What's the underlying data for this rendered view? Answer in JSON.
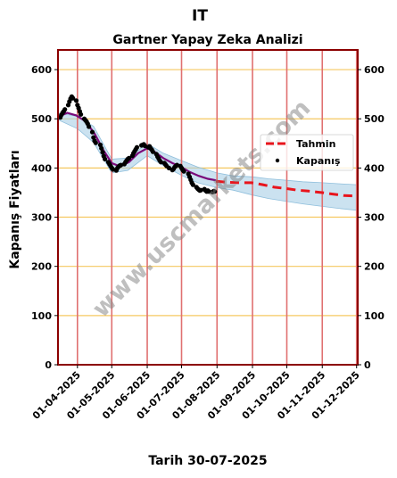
{
  "chart_data": {
    "type": "line",
    "suptitle": "IT",
    "title": "Gartner Yapay Zeka Analizi",
    "ylabel": "Kapanış Fiyatları",
    "xlabel": "Tarih 30-07-2025",
    "watermark": "www.uscmarkets.com",
    "ylim": [
      0,
      640
    ],
    "xlim": [
      "2025-03-15",
      "2025-12-02"
    ],
    "yticks": [
      0,
      100,
      200,
      300,
      400,
      500,
      600
    ],
    "xticks": [
      {
        "date": "2025-04-01",
        "label": "01-04-2025"
      },
      {
        "date": "2025-05-01",
        "label": "01-05-2025"
      },
      {
        "date": "2025-06-01",
        "label": "01-06-2025"
      },
      {
        "date": "2025-07-01",
        "label": "01-07-2025"
      },
      {
        "date": "2025-08-01",
        "label": "01-08-2025"
      },
      {
        "date": "2025-09-01",
        "label": "01-09-2025"
      },
      {
        "date": "2025-10-01",
        "label": "01-10-2025"
      },
      {
        "date": "2025-11-01",
        "label": "01-11-2025"
      },
      {
        "date": "2025-12-01",
        "label": "01-12-2025"
      }
    ],
    "vlines": [
      "2025-04-01",
      "2025-05-01",
      "2025-06-01",
      "2025-07-01",
      "2025-08-01",
      "2025-09-01",
      "2025-10-01",
      "2025-11-01",
      "2025-12-01"
    ],
    "grid": true,
    "legend_position": "right",
    "legend": [
      {
        "label": "Tahmin",
        "style": "dashed-line",
        "color": "#e8141c"
      },
      {
        "label": "Kapanış",
        "style": "dot",
        "color": "#000000"
      }
    ],
    "colors": {
      "axes_border": "#8b0000",
      "vline": "#e07070",
      "hgrid": "#f5c860",
      "band": "#a8cfe6",
      "band_edge": "#8fbfdc",
      "fit_past": "#7a0a7a",
      "forecast": "#e8141c",
      "close": "#000000"
    },
    "series": [
      {
        "name": "Kapanış",
        "kind": "scatter",
        "points": [
          [
            "2025-03-17",
            503
          ],
          [
            "2025-03-18",
            508
          ],
          [
            "2025-03-19",
            512
          ],
          [
            "2025-03-20",
            515
          ],
          [
            "2025-03-21",
            519
          ],
          [
            "2025-03-24",
            528
          ],
          [
            "2025-03-25",
            535
          ],
          [
            "2025-03-26",
            541
          ],
          [
            "2025-03-27",
            545
          ],
          [
            "2025-03-28",
            542
          ],
          [
            "2025-03-31",
            537
          ],
          [
            "2025-04-01",
            528
          ],
          [
            "2025-04-02",
            522
          ],
          [
            "2025-04-03",
            515
          ],
          [
            "2025-04-04",
            509
          ],
          [
            "2025-04-07",
            500
          ],
          [
            "2025-04-08",
            497
          ],
          [
            "2025-04-09",
            494
          ],
          [
            "2025-04-10",
            490
          ],
          [
            "2025-04-11",
            484
          ],
          [
            "2025-04-14",
            473
          ],
          [
            "2025-04-15",
            462
          ],
          [
            "2025-04-16",
            455
          ],
          [
            "2025-04-17",
            451
          ],
          [
            "2025-04-21",
            447
          ],
          [
            "2025-04-22",
            440
          ],
          [
            "2025-04-23",
            432
          ],
          [
            "2025-04-24",
            424
          ],
          [
            "2025-04-25",
            418
          ],
          [
            "2025-04-28",
            412
          ],
          [
            "2025-04-29",
            408
          ],
          [
            "2025-04-30",
            404
          ],
          [
            "2025-05-01",
            400
          ],
          [
            "2025-05-02",
            397
          ],
          [
            "2025-05-05",
            395
          ],
          [
            "2025-05-06",
            400
          ],
          [
            "2025-05-07",
            403
          ],
          [
            "2025-05-08",
            405
          ],
          [
            "2025-05-09",
            406
          ],
          [
            "2025-05-12",
            408
          ],
          [
            "2025-05-13",
            412
          ],
          [
            "2025-05-14",
            415
          ],
          [
            "2025-05-15",
            418
          ],
          [
            "2025-05-16",
            420
          ],
          [
            "2025-05-19",
            425
          ],
          [
            "2025-05-20",
            430
          ],
          [
            "2025-05-21",
            434
          ],
          [
            "2025-05-22",
            438
          ],
          [
            "2025-05-23",
            442
          ],
          [
            "2025-05-27",
            446
          ],
          [
            "2025-05-28",
            447
          ],
          [
            "2025-05-29",
            448
          ],
          [
            "2025-05-30",
            445
          ],
          [
            "2025-06-02",
            442
          ],
          [
            "2025-06-03",
            444
          ],
          [
            "2025-06-04",
            440
          ],
          [
            "2025-06-05",
            437
          ],
          [
            "2025-06-06",
            433
          ],
          [
            "2025-06-09",
            428
          ],
          [
            "2025-06-10",
            423
          ],
          [
            "2025-06-11",
            419
          ],
          [
            "2025-06-12",
            415
          ],
          [
            "2025-06-13",
            412
          ],
          [
            "2025-06-16",
            410
          ],
          [
            "2025-06-17",
            407
          ],
          [
            "2025-06-18",
            404
          ],
          [
            "2025-06-20",
            400
          ],
          [
            "2025-06-23",
            396
          ],
          [
            "2025-06-24",
            398
          ],
          [
            "2025-06-25",
            402
          ],
          [
            "2025-06-26",
            404
          ],
          [
            "2025-06-27",
            406
          ],
          [
            "2025-06-30",
            404
          ],
          [
            "2025-07-01",
            400
          ],
          [
            "2025-07-02",
            396
          ],
          [
            "2025-07-03",
            393
          ],
          [
            "2025-07-07",
            388
          ],
          [
            "2025-07-08",
            382
          ],
          [
            "2025-07-09",
            376
          ],
          [
            "2025-07-10",
            370
          ],
          [
            "2025-07-11",
            366
          ],
          [
            "2025-07-14",
            361
          ],
          [
            "2025-07-15",
            358
          ],
          [
            "2025-07-16",
            356
          ],
          [
            "2025-07-17",
            354
          ],
          [
            "2025-07-18",
            355
          ],
          [
            "2025-07-21",
            357
          ],
          [
            "2025-07-22",
            354
          ],
          [
            "2025-07-23",
            352
          ],
          [
            "2025-07-24",
            354
          ],
          [
            "2025-07-25",
            352
          ],
          [
            "2025-07-28",
            351
          ],
          [
            "2025-07-29",
            353
          ],
          [
            "2025-07-30",
            352
          ]
        ]
      },
      {
        "name": "Tahmin",
        "kind": "dashed-line",
        "points": [
          [
            "2025-07-31",
            373
          ],
          [
            "2025-08-10",
            371
          ],
          [
            "2025-08-20",
            370
          ],
          [
            "2025-08-31",
            370
          ],
          [
            "2025-09-10",
            366
          ],
          [
            "2025-09-20",
            361
          ],
          [
            "2025-10-01",
            358
          ],
          [
            "2025-10-10",
            355
          ],
          [
            "2025-10-20",
            353
          ],
          [
            "2025-11-01",
            350
          ],
          [
            "2025-11-10",
            347
          ],
          [
            "2025-11-20",
            344
          ],
          [
            "2025-12-01",
            343
          ]
        ]
      },
      {
        "name": "",
        "kind": "past-fit",
        "points": [
          [
            "2025-03-16",
            505
          ],
          [
            "2025-03-23",
            512
          ],
          [
            "2025-03-31",
            507
          ],
          [
            "2025-04-08",
            495
          ],
          [
            "2025-04-16",
            470
          ],
          [
            "2025-04-24",
            435
          ],
          [
            "2025-05-01",
            410
          ],
          [
            "2025-05-08",
            403
          ],
          [
            "2025-05-16",
            412
          ],
          [
            "2025-05-24",
            430
          ],
          [
            "2025-06-01",
            440
          ],
          [
            "2025-06-08",
            432
          ],
          [
            "2025-06-15",
            420
          ],
          [
            "2025-06-23",
            410
          ],
          [
            "2025-07-01",
            402
          ],
          [
            "2025-07-08",
            392
          ],
          [
            "2025-07-16",
            384
          ],
          [
            "2025-07-24",
            378
          ],
          [
            "2025-07-31",
            375
          ]
        ]
      }
    ],
    "band": {
      "x": [
        "2025-03-15",
        "2025-04-01",
        "2025-04-15",
        "2025-05-01",
        "2025-05-15",
        "2025-06-01",
        "2025-06-15",
        "2025-07-01",
        "2025-07-15",
        "2025-08-01",
        "2025-08-15",
        "2025-09-01",
        "2025-09-15",
        "2025-10-01",
        "2025-10-15",
        "2025-11-01",
        "2025-11-15",
        "2025-12-01"
      ],
      "upper": [
        512,
        505,
        485,
        418,
        420,
        450,
        430,
        415,
        402,
        390,
        384,
        382,
        378,
        375,
        372,
        370,
        368,
        366
      ],
      "lower": [
        498,
        480,
        452,
        390,
        395,
        425,
        405,
        385,
        370,
        360,
        355,
        345,
        338,
        332,
        327,
        322,
        318,
        314
      ]
    }
  }
}
